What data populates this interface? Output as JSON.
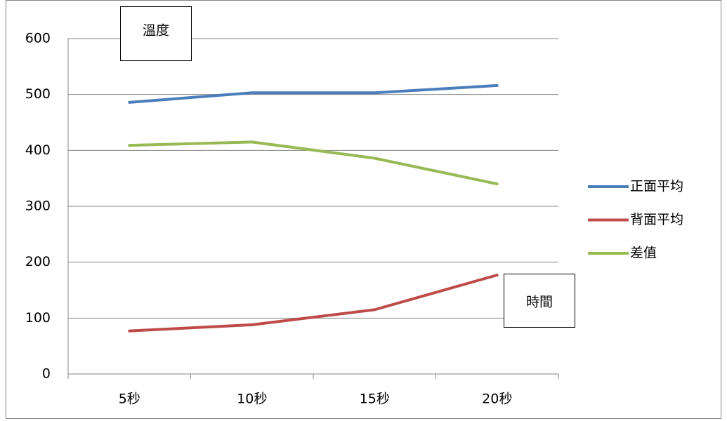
{
  "chart_data": {
    "type": "line",
    "annotations": [
      "溫度",
      "時間"
    ],
    "categories": [
      "5秒",
      "10秒",
      "15秒",
      "20秒"
    ],
    "series": [
      {
        "name": "正面平均",
        "color": "#4a7ebb",
        "values": [
          486,
          503,
          503,
          516
        ]
      },
      {
        "name": "背面平均",
        "color": "#be4b48",
        "values": [
          77,
          88,
          115,
          177
        ]
      },
      {
        "name": "差值",
        "color": "#98b954",
        "values": [
          409,
          415,
          386,
          340
        ]
      }
    ],
    "ylim": [
      0,
      600
    ],
    "yticks": [
      0,
      100,
      200,
      300,
      400,
      500,
      600
    ],
    "grid": true,
    "legend": "right"
  }
}
